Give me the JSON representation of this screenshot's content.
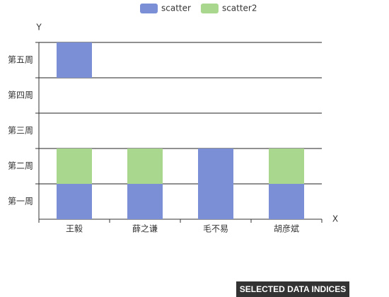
{
  "chart_data": {
    "type": "scatter",
    "categories": [
      "王毅",
      "薛之谦",
      "毛不易",
      "胡彦斌"
    ],
    "y_categories": [
      "第一周",
      "第二周",
      "第三周",
      "第四周",
      "第五周"
    ],
    "x_label": "X",
    "y_label": "Y",
    "grid": true,
    "series": [
      {
        "name": "scatter",
        "color": "#7b8fd6",
        "x": [
          "王毅",
          "王毅",
          "薛之谦",
          "毛不易",
          "毛不易",
          "胡彦斌"
        ],
        "y": [
          "第一周",
          "第五周",
          "第一周",
          "第一周",
          "第二周",
          "第一周"
        ]
      },
      {
        "name": "scatter2",
        "color": "#a9d78d",
        "x": [
          "王毅",
          "薛之谦",
          "胡彦斌"
        ],
        "y": [
          "第二周",
          "第二周",
          "第二周"
        ]
      }
    ]
  },
  "button": "SELECTED DATA INDICES"
}
